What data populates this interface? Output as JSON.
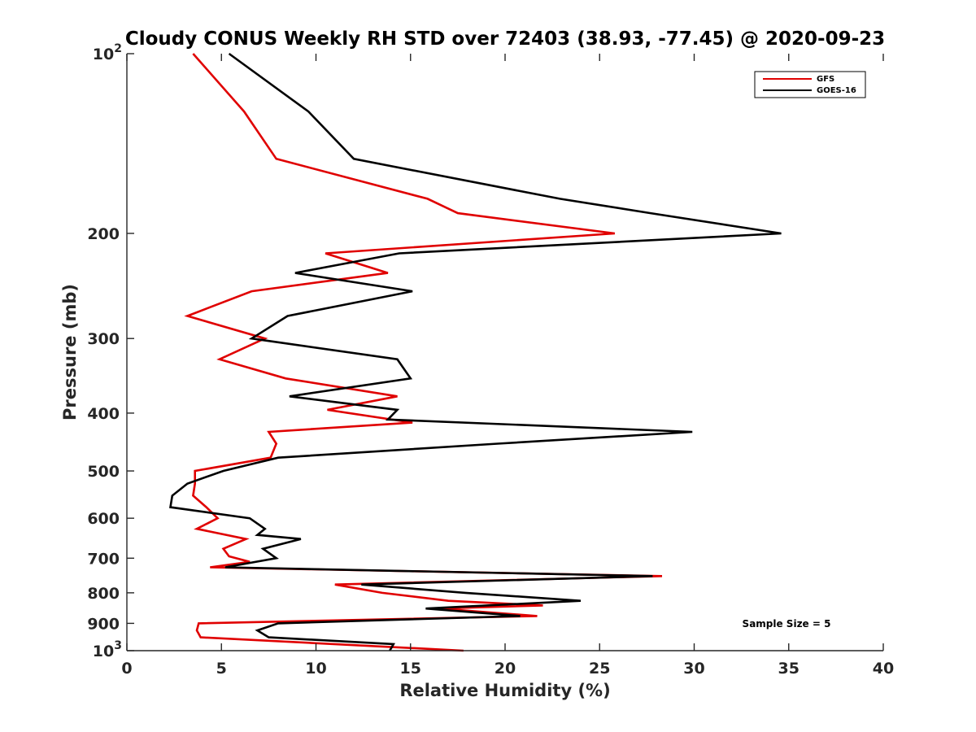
{
  "chart_data": {
    "type": "line",
    "title": "Cloudy CONUS Weekly RH STD over 72403 (38.93, -77.45) @ 2020-09-23",
    "xlabel": "Relative Humidity (%)",
    "ylabel": "Pressure (mb)",
    "xlim": [
      0,
      40
    ],
    "ylim": [
      100,
      1000
    ],
    "yscale": "log",
    "y_reversed": true,
    "x_ticks": [
      0,
      5,
      10,
      15,
      20,
      25,
      30,
      35,
      40
    ],
    "x_tick_labels": [
      "0",
      "5",
      "10",
      "15",
      "20",
      "25",
      "30",
      "35",
      "40"
    ],
    "y_ticks": [
      100,
      200,
      300,
      400,
      500,
      600,
      700,
      800,
      900,
      1000
    ],
    "y_tick_labels": [
      "10^2",
      "200",
      "300",
      "400",
      "500",
      "600",
      "700",
      "800",
      "900",
      "10^3"
    ],
    "grid": false,
    "legend_location": "top-right",
    "annotation": "Sample Size = 5",
    "series": [
      {
        "name": "GFS",
        "color": "#e00000",
        "points": [
          [
            3.5,
            100
          ],
          [
            6.2,
            125
          ],
          [
            7.9,
            150
          ],
          [
            15.9,
            175
          ],
          [
            17.5,
            185
          ],
          [
            25.8,
            200
          ],
          [
            10.5,
            216
          ],
          [
            13.8,
            233
          ],
          [
            6.6,
            250
          ],
          [
            3.2,
            275
          ],
          [
            7.3,
            300
          ],
          [
            4.9,
            325
          ],
          [
            8.4,
            350
          ],
          [
            14.3,
            375
          ],
          [
            10.6,
            395
          ],
          [
            15.1,
            415
          ],
          [
            7.5,
            430
          ],
          [
            7.9,
            450
          ],
          [
            7.6,
            475
          ],
          [
            3.6,
            500
          ],
          [
            3.6,
            525
          ],
          [
            3.5,
            550
          ],
          [
            4.2,
            575
          ],
          [
            4.8,
            600
          ],
          [
            3.7,
            625
          ],
          [
            6.3,
            650
          ],
          [
            5.1,
            675
          ],
          [
            5.4,
            695
          ],
          [
            6.5,
            710
          ],
          [
            4.4,
            725
          ],
          [
            28.3,
            750
          ],
          [
            11.0,
            775
          ],
          [
            13.5,
            800
          ],
          [
            17.0,
            825
          ],
          [
            22.0,
            840
          ],
          [
            16.5,
            850
          ],
          [
            21.7,
            875
          ],
          [
            3.8,
            900
          ],
          [
            3.7,
            925
          ],
          [
            3.9,
            950
          ],
          [
            17.8,
            1000
          ]
        ]
      },
      {
        "name": "GOES-16",
        "color": "#000000",
        "points": [
          [
            5.4,
            100
          ],
          [
            9.6,
            125
          ],
          [
            12.0,
            150
          ],
          [
            22.9,
            175
          ],
          [
            27.7,
            185
          ],
          [
            34.6,
            200
          ],
          [
            14.4,
            216
          ],
          [
            8.9,
            233
          ],
          [
            15.1,
            250
          ],
          [
            8.5,
            275
          ],
          [
            6.6,
            300
          ],
          [
            14.3,
            325
          ],
          [
            15.0,
            350
          ],
          [
            8.6,
            375
          ],
          [
            14.3,
            395
          ],
          [
            13.8,
            410
          ],
          [
            29.9,
            430
          ],
          [
            19.6,
            450
          ],
          [
            8.0,
            475
          ],
          [
            5.1,
            500
          ],
          [
            3.2,
            525
          ],
          [
            2.4,
            550
          ],
          [
            2.3,
            575
          ],
          [
            6.5,
            600
          ],
          [
            7.3,
            625
          ],
          [
            6.9,
            640
          ],
          [
            9.2,
            650
          ],
          [
            7.2,
            675
          ],
          [
            7.9,
            700
          ],
          [
            5.2,
            725
          ],
          [
            27.8,
            750
          ],
          [
            12.4,
            775
          ],
          [
            17.9,
            800
          ],
          [
            24.0,
            825
          ],
          [
            15.8,
            850
          ],
          [
            20.8,
            875
          ],
          [
            8.0,
            900
          ],
          [
            6.9,
            925
          ],
          [
            7.5,
            950
          ],
          [
            14.1,
            975
          ],
          [
            13.9,
            1000
          ]
        ]
      }
    ]
  }
}
